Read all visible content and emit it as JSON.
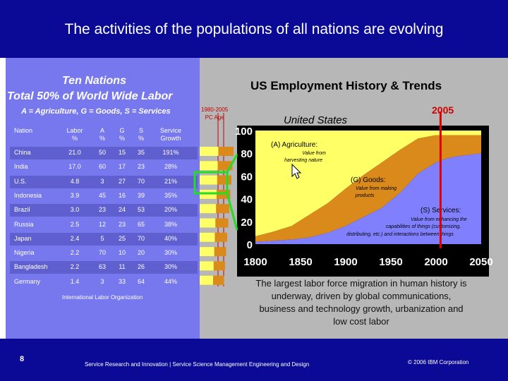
{
  "slide": {
    "title": "The activities of the populations of all nations are evolving",
    "page_number": "8",
    "footer_text": "Service Research and Innovation  |  Service Science Management Engineering and Design",
    "copyright": "© 2006 IBM Corporation"
  },
  "left": {
    "heading": "Ten Nations",
    "subheading": "Total 50% of World Wide Labor",
    "key": "A = Agriculture, G = Goods, S = Services",
    "source": "International Labor Organization",
    "table": {
      "headers": [
        {
          "line1": "Nation",
          "line2": ""
        },
        {
          "line1": "Labor",
          "line2": "%"
        },
        {
          "line1": "A",
          "line2": "%"
        },
        {
          "line1": "G",
          "line2": "%"
        },
        {
          "line1": "S",
          "line2": "%"
        },
        {
          "line1": "Service",
          "line2": "Growth"
        }
      ],
      "rows": [
        [
          "China",
          "21.0",
          "50",
          "15",
          "35",
          "191%"
        ],
        [
          "India",
          "17.0",
          "60",
          "17",
          "23",
          "28%"
        ],
        [
          "U.S.",
          "4.8",
          "3",
          "27",
          "70",
          "21%"
        ],
        [
          "Indonesia",
          "3.9",
          "45",
          "16",
          "39",
          "35%"
        ],
        [
          "Brazil",
          "3.0",
          "23",
          "24",
          "53",
          "20%"
        ],
        [
          "Russia",
          "2.5",
          "12",
          "23",
          "65",
          "38%"
        ],
        [
          "Japan",
          "2.4",
          "5",
          "25",
          "70",
          "40%"
        ],
        [
          "Nigeria",
          "2.2",
          "70",
          "10",
          "20",
          "30%"
        ],
        [
          "Bangladesh",
          "2.2",
          "63",
          "11",
          "26",
          "30%"
        ],
        [
          "Germany",
          "1.4",
          "3",
          "33",
          "64",
          "44%"
        ]
      ]
    }
  },
  "right": {
    "title": "US Employment History & Trends",
    "marker_label": "2005",
    "pc_age_line1": "1980-2005",
    "pc_age_line2": "PC Age",
    "country_label": "United States",
    "caption": "The largest labor force migration in human history is underway, driven by global communications, business and technology growth, urbanization and low cost labor"
  },
  "colors": {
    "background": "#0a0a96",
    "panel": "#7777ee",
    "agriculture": "#ffff66",
    "goods": "#d98a1a",
    "services": "#8080ff",
    "marker": "#e00000",
    "bracket": "#22dd22"
  },
  "chart_data": {
    "type": "area",
    "x": [
      1800,
      1820,
      1840,
      1860,
      1880,
      1900,
      1920,
      1940,
      1960,
      1980,
      2000,
      2010,
      2020,
      2030,
      2040,
      2050
    ],
    "series": [
      {
        "name": "(S) Services:",
        "values": [
          2,
          3,
          4,
          6,
          10,
          16,
          24,
          32,
          45,
          62,
          72,
          75,
          77,
          78,
          79,
          80
        ]
      },
      {
        "name": "(G) Goods:",
        "values": [
          5,
          8,
          12,
          20,
          26,
          33,
          37,
          40,
          38,
          31,
          24,
          21,
          19,
          18,
          17,
          16
        ]
      },
      {
        "name": "(A) Agriculture:",
        "values": [
          93,
          89,
          84,
          74,
          64,
          51,
          39,
          28,
          17,
          7,
          4,
          4,
          4,
          4,
          4,
          4
        ]
      }
    ],
    "series_notes": [
      "Value from enhancing the capabilities of things (customizing, distributing, etc.) and interactions between things",
      "Value from making products",
      "Value from harvesting nature"
    ],
    "yticks": [
      "0",
      "20",
      "40",
      "60",
      "80",
      "100"
    ],
    "xticks": [
      "1800",
      "1850",
      "1900",
      "1950",
      "2000",
      "2050"
    ],
    "ylim": [
      0,
      100
    ],
    "xlim": [
      1800,
      2050
    ],
    "marker_x": 2005
  }
}
